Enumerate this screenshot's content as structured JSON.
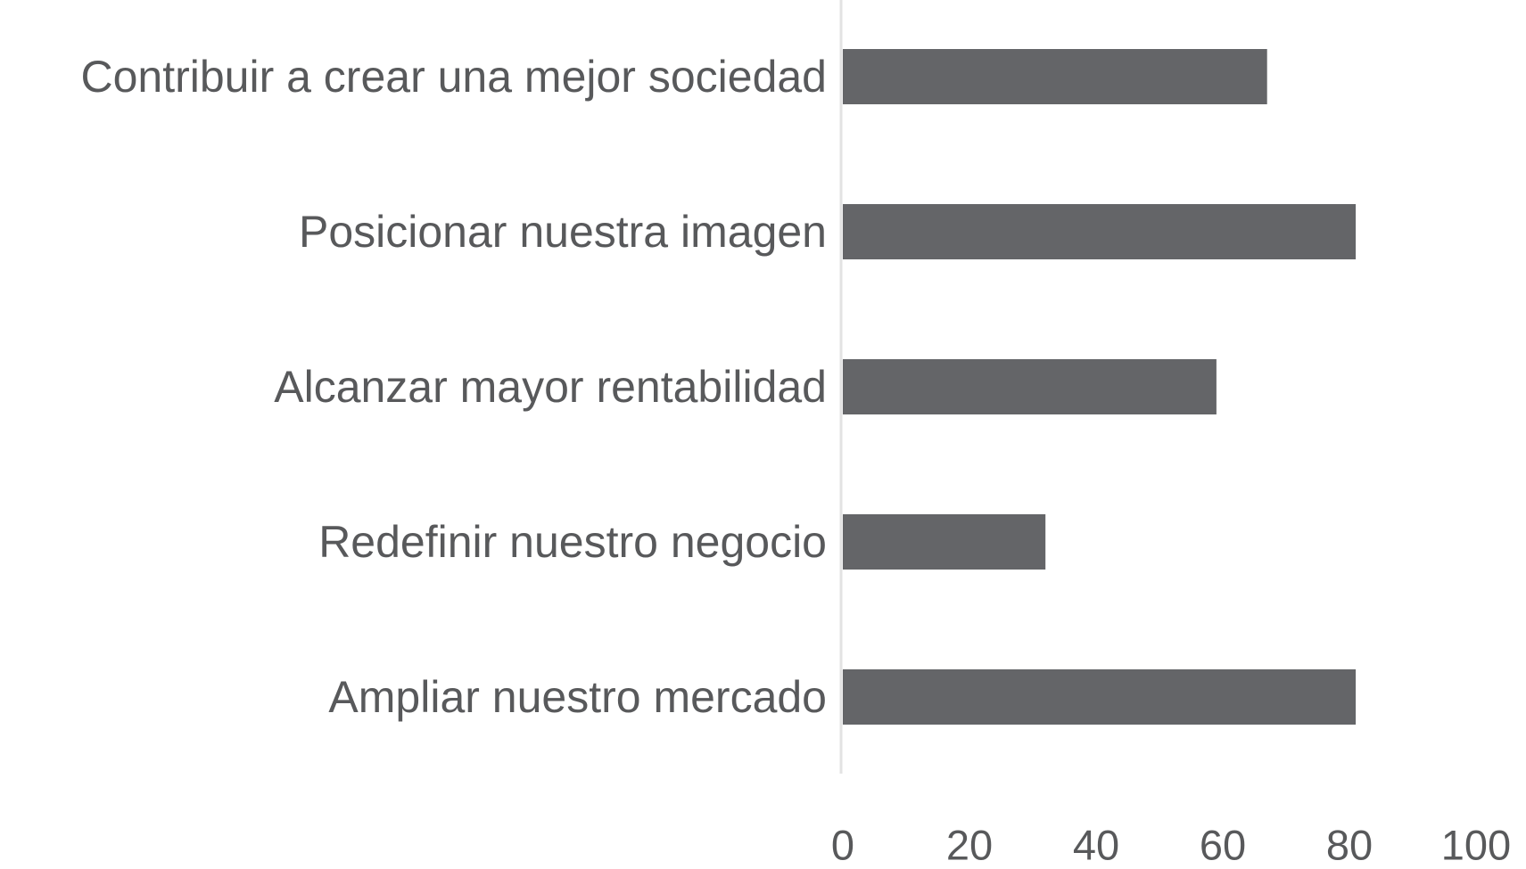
{
  "chart_data": {
    "type": "bar",
    "orientation": "horizontal",
    "categories": [
      "Contribuir a crear una mejor sociedad",
      "Posicionar nuestra imagen",
      "Alcanzar mayor rentabilidad",
      "Redefinir nuestro negocio",
      "Ampliar nuestro mercado"
    ],
    "values": [
      67,
      81,
      59,
      32,
      81
    ],
    "xlim": [
      0,
      100
    ],
    "xticks": [
      "0",
      "20",
      "40",
      "60",
      "80",
      "100"
    ],
    "title": "",
    "xlabel": "",
    "ylabel": "",
    "grid": false,
    "legend": "none",
    "bar_color": "#646568",
    "axis_color": "#e3e3e3",
    "text_color": "#58595b"
  }
}
